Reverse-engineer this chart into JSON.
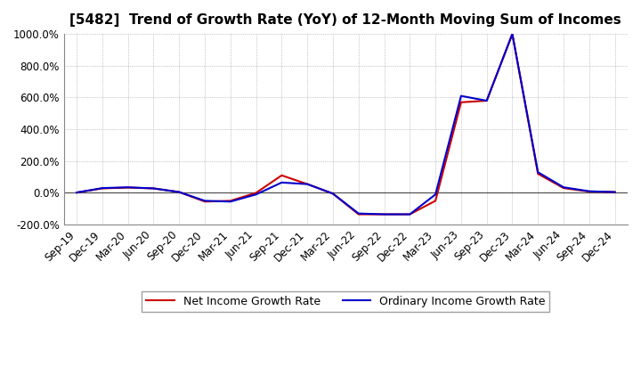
{
  "title": "[5482]  Trend of Growth Rate (YoY) of 12-Month Moving Sum of Incomes",
  "xlabels": [
    "Sep-19",
    "Dec-19",
    "Mar-20",
    "Jun-20",
    "Sep-20",
    "Dec-20",
    "Mar-21",
    "Jun-21",
    "Sep-21",
    "Dec-21",
    "Mar-22",
    "Jun-22",
    "Sep-22",
    "Dec-22",
    "Mar-23",
    "Jun-23",
    "Sep-23",
    "Dec-23",
    "Mar-24",
    "Jun-24",
    "Sep-24",
    "Dec-24"
  ],
  "ordinary_income": [
    0.02,
    0.3,
    0.35,
    0.28,
    0.05,
    -0.5,
    -0.55,
    -0.1,
    0.65,
    0.55,
    -0.05,
    -1.3,
    -1.35,
    -1.35,
    -0.1,
    6.1,
    5.8,
    10.0,
    1.3,
    0.35,
    0.1,
    0.05
  ],
  "net_income": [
    0.02,
    0.28,
    0.33,
    0.28,
    0.05,
    -0.55,
    -0.5,
    0.0,
    1.1,
    0.55,
    -0.05,
    -1.35,
    -1.35,
    -1.35,
    -0.5,
    5.7,
    5.8,
    10.0,
    1.2,
    0.3,
    0.08,
    0.05
  ],
  "ylim_min": -2.0,
  "ylim_max": 10.0,
  "yticks": [
    -2.0,
    0.0,
    2.0,
    4.0,
    6.0,
    8.0,
    10.0
  ],
  "ytick_labels": [
    "-200.0%",
    "0.0%",
    "200.0%",
    "400.0%",
    "600.0%",
    "800.0%",
    "1000.0%"
  ],
  "ordinary_color": "#0000CC",
  "net_color": "#CC0000",
  "legend_ordinary": "Ordinary Income Growth Rate",
  "legend_net": "Net Income Growth Rate",
  "background_color": "#FFFFFF",
  "grid_color": "#999999",
  "title_fontsize": 11,
  "tick_fontsize": 8.5
}
